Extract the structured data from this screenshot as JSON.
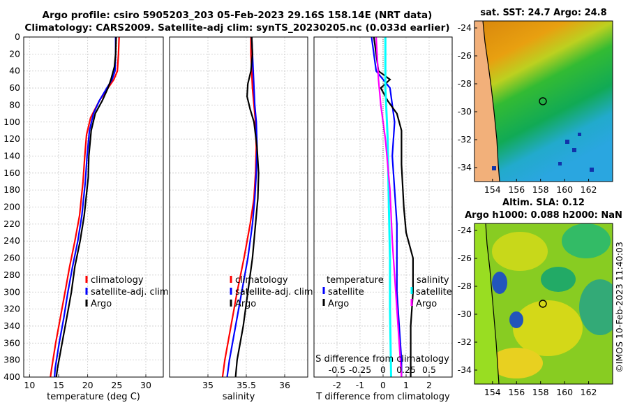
{
  "title_line1": "Argo profile: csiro 5905203_203 05-Feb-2023 29.16S 158.14E (NRT data)",
  "title_line2": "Climatology: CARS2009. Satellite-adj clim: synTS_20230205.nc (0.033d earlier)",
  "credit": "©IMOS 10-Feb-2023 11:40:03",
  "colors": {
    "climatology": "#ff0000",
    "satellite": "#0000ff",
    "argo": "#000000",
    "temp_diff": "#00ffff",
    "sal_diff": "#ff00ff"
  },
  "chart_data": [
    {
      "type": "line",
      "name": "temperature",
      "xlabel": "temperature (deg C)",
      "ylabel": "",
      "xlim": [
        9,
        33
      ],
      "ylim": [
        400,
        0
      ],
      "xticks": [
        10,
        15,
        20,
        25,
        30
      ],
      "yticks": [
        0,
        20,
        40,
        60,
        80,
        100,
        120,
        140,
        160,
        180,
        200,
        220,
        240,
        260,
        280,
        300,
        320,
        340,
        360,
        380,
        400
      ],
      "grid": true,
      "legend": [
        "climatology",
        "satellite-adj. clim",
        "Argo"
      ],
      "legend_position": "lower-right",
      "series": [
        {
          "name": "climatology",
          "color": "#ff0000",
          "points": [
            [
              25.4,
              0
            ],
            [
              25.3,
              20
            ],
            [
              25.1,
              40
            ],
            [
              24.5,
              50
            ],
            [
              23.5,
              60
            ],
            [
              22.0,
              75
            ],
            [
              20.5,
              95
            ],
            [
              19.8,
              115
            ],
            [
              19.5,
              140
            ],
            [
              19.2,
              170
            ],
            [
              18.6,
              210
            ],
            [
              17.8,
              240
            ],
            [
              16.9,
              270
            ],
            [
              16.1,
              300
            ],
            [
              15.3,
              330
            ],
            [
              14.5,
              360
            ],
            [
              13.8,
              390
            ],
            [
              13.6,
              400
            ]
          ]
        },
        {
          "name": "satellite-adj. clim",
          "color": "#0000ff",
          "points": [
            [
              24.8,
              0
            ],
            [
              24.8,
              20
            ],
            [
              24.7,
              40
            ],
            [
              24.2,
              50
            ],
            [
              23.3,
              60
            ],
            [
              22.0,
              75
            ],
            [
              21.0,
              90
            ],
            [
              20.3,
              110
            ],
            [
              19.9,
              140
            ],
            [
              19.6,
              170
            ],
            [
              19.0,
              210
            ],
            [
              18.3,
              240
            ],
            [
              17.4,
              270
            ],
            [
              16.6,
              300
            ],
            [
              15.9,
              330
            ],
            [
              15.1,
              360
            ],
            [
              14.4,
              390
            ],
            [
              14.3,
              400
            ]
          ]
        },
        {
          "name": "Argo",
          "color": "#000000",
          "points": [
            [
              24.9,
              0
            ],
            [
              24.8,
              20
            ],
            [
              24.6,
              35
            ],
            [
              24.0,
              50
            ],
            [
              23.5,
              60
            ],
            [
              22.5,
              75
            ],
            [
              21.3,
              90
            ],
            [
              20.6,
              110
            ],
            [
              20.2,
              140
            ],
            [
              20.1,
              165
            ],
            [
              19.4,
              210
            ],
            [
              18.7,
              240
            ],
            [
              17.8,
              270
            ],
            [
              17.2,
              300
            ],
            [
              16.4,
              330
            ],
            [
              15.6,
              360
            ],
            [
              14.8,
              390
            ],
            [
              14.6,
              400
            ]
          ]
        }
      ]
    },
    {
      "type": "line",
      "name": "salinity",
      "xlabel": "salinity",
      "xlim": [
        34.5,
        36.3
      ],
      "ylim": [
        400,
        0
      ],
      "xticks": [
        35,
        35.5,
        36
      ],
      "grid": true,
      "legend": [
        "climatology",
        "satellite-adj. clim",
        "Argo"
      ],
      "legend_position": "lower-right",
      "series": [
        {
          "name": "climatology",
          "color": "#ff0000",
          "points": [
            [
              35.56,
              0
            ],
            [
              35.56,
              20
            ],
            [
              35.57,
              40
            ],
            [
              35.58,
              60
            ],
            [
              35.6,
              80
            ],
            [
              35.62,
              100
            ],
            [
              35.63,
              130
            ],
            [
              35.62,
              160
            ],
            [
              35.6,
              190
            ],
            [
              35.55,
              220
            ],
            [
              35.47,
              260
            ],
            [
              35.38,
              300
            ],
            [
              35.3,
              340
            ],
            [
              35.22,
              380
            ],
            [
              35.19,
              400
            ]
          ]
        },
        {
          "name": "satellite-adj. clim",
          "color": "#0000ff",
          "points": [
            [
              35.57,
              0
            ],
            [
              35.58,
              20
            ],
            [
              35.59,
              40
            ],
            [
              35.6,
              60
            ],
            [
              35.61,
              80
            ],
            [
              35.63,
              100
            ],
            [
              35.64,
              130
            ],
            [
              35.63,
              160
            ],
            [
              35.61,
              190
            ],
            [
              35.58,
              220
            ],
            [
              35.52,
              260
            ],
            [
              35.44,
              300
            ],
            [
              35.36,
              340
            ],
            [
              35.28,
              380
            ],
            [
              35.25,
              400
            ]
          ]
        },
        {
          "name": "Argo",
          "color": "#000000",
          "points": [
            [
              35.57,
              0
            ],
            [
              35.58,
              20
            ],
            [
              35.56,
              40
            ],
            [
              35.52,
              55
            ],
            [
              35.51,
              70
            ],
            [
              35.55,
              85
            ],
            [
              35.6,
              100
            ],
            [
              35.64,
              130
            ],
            [
              35.66,
              160
            ],
            [
              35.65,
              190
            ],
            [
              35.62,
              220
            ],
            [
              35.58,
              260
            ],
            [
              35.52,
              300
            ],
            [
              35.46,
              340
            ],
            [
              35.38,
              380
            ],
            [
              35.36,
              400
            ]
          ]
        }
      ]
    },
    {
      "type": "line",
      "name": "difference",
      "xlabel": "T difference from climatology",
      "top_xlabel": "S difference from climatology",
      "xlim": [
        -3,
        3
      ],
      "ylim": [
        400,
        0
      ],
      "xticks": [
        -2,
        -1,
        0,
        1,
        2
      ],
      "top_xticks": [
        -0.5,
        -0.25,
        0,
        0.25,
        0.5
      ],
      "grid": true,
      "legend_temperature": [
        "temperature",
        "satellite",
        "Argo"
      ],
      "legend_salinity": [
        "salinity",
        "satellite",
        "Argo"
      ],
      "series": [
        {
          "name": "temperature satellite",
          "color": "#0000ff",
          "points": [
            [
              -0.5,
              0
            ],
            [
              -0.3,
              40
            ],
            [
              0.3,
              60
            ],
            [
              0.5,
              100
            ],
            [
              0.4,
              140
            ],
            [
              0.5,
              180
            ],
            [
              0.6,
              220
            ],
            [
              0.6,
              260
            ],
            [
              0.6,
              300
            ],
            [
              0.7,
              340
            ],
            [
              0.8,
              380
            ],
            [
              0.8,
              400
            ]
          ]
        },
        {
          "name": "temperature Argo",
          "color": "#000000",
          "points": [
            [
              -0.4,
              0
            ],
            [
              -0.2,
              40
            ],
            [
              0.3,
              50
            ],
            [
              -0.1,
              60
            ],
            [
              0.2,
              75
            ],
            [
              0.6,
              90
            ],
            [
              0.8,
              110
            ],
            [
              0.8,
              150
            ],
            [
              0.9,
              200
            ],
            [
              1.0,
              230
            ],
            [
              1.3,
              260
            ],
            [
              1.3,
              300
            ],
            [
              1.2,
              340
            ],
            [
              1.2,
              380
            ],
            [
              1.2,
              400
            ]
          ]
        },
        {
          "name": "temperature difference",
          "color": "#00ffff",
          "points": [
            [
              0.1,
              0
            ],
            [
              0.1,
              60
            ],
            [
              0.2,
              120
            ],
            [
              0.25,
              200
            ],
            [
              0.3,
              260
            ],
            [
              0.3,
              320
            ],
            [
              0.35,
              400
            ]
          ]
        },
        {
          "name": "salinity Argo",
          "color": "#ff00ff",
          "points": [
            [
              -0.3,
              0
            ],
            [
              -0.2,
              50
            ],
            [
              -0.1,
              80
            ],
            [
              0.1,
              120
            ],
            [
              0.3,
              180
            ],
            [
              0.4,
              240
            ],
            [
              0.5,
              280
            ],
            [
              0.6,
              320
            ],
            [
              0.7,
              360
            ],
            [
              0.8,
              400
            ]
          ]
        }
      ]
    },
    {
      "type": "heatmap",
      "name": "sat_sst_map",
      "title": "sat. SST: 24.7 Argo: 24.8",
      "xlim": [
        152.5,
        164
      ],
      "ylim": [
        -35,
        -23.5
      ],
      "xticks": [
        154,
        156,
        158,
        160,
        162
      ],
      "yticks": [
        -24,
        -26,
        -28,
        -30,
        -32,
        -34
      ],
      "marker": {
        "lon": 158.14,
        "lat": -29.16
      }
    },
    {
      "type": "heatmap",
      "name": "sla_map",
      "title_line1": "Altim. SLA: 0.12",
      "title_line2": "Argo h1000: 0.088 h2000: NaN",
      "xlim": [
        152.5,
        164
      ],
      "ylim": [
        -35,
        -23.5
      ],
      "xticks": [
        154,
        156,
        158,
        160,
        162
      ],
      "yticks": [
        -24,
        -26,
        -28,
        -30,
        -32,
        -34
      ],
      "marker": {
        "lon": 158.14,
        "lat": -29.16
      }
    }
  ]
}
